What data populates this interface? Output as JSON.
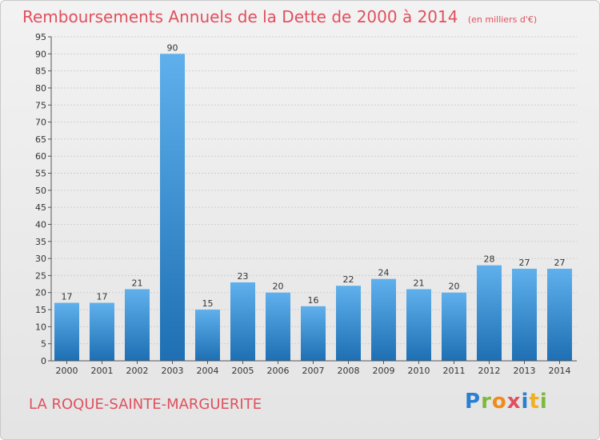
{
  "header": {
    "title": "Remboursements Annuels de la Dette de 2000 à 2014",
    "unit": "(en milliers d'€)"
  },
  "footer": {
    "place": "LA ROQUE-SAINTE-MARGUERITE",
    "logo": {
      "letters": [
        "P",
        "r",
        "o",
        "x",
        "i",
        "t",
        "i"
      ],
      "colors": [
        "#2a7fd0",
        "#7dba3a",
        "#f08a1a",
        "#e0505e",
        "#2a7fd0",
        "#f0b020",
        "#7dba3a"
      ]
    }
  },
  "colors": {
    "bar_top": "#5fb0ec",
    "bar_bottom": "#1e6fb3",
    "axis": "#555555",
    "grid": "#cfcfcf",
    "title": "#e0505e"
  },
  "chart_data": {
    "type": "bar",
    "categories": [
      "2000",
      "2001",
      "2002",
      "2003",
      "2004",
      "2005",
      "2006",
      "2007",
      "2008",
      "2009",
      "2010",
      "2011",
      "2012",
      "2013",
      "2014"
    ],
    "values": [
      17,
      17,
      21,
      90,
      15,
      23,
      20,
      16,
      22,
      24,
      21,
      20,
      28,
      27,
      27
    ],
    "ylim": [
      0,
      95
    ],
    "yticks": [
      0,
      5,
      10,
      15,
      20,
      25,
      30,
      35,
      40,
      45,
      50,
      55,
      60,
      65,
      70,
      75,
      80,
      85,
      90,
      95
    ],
    "grid": true
  }
}
